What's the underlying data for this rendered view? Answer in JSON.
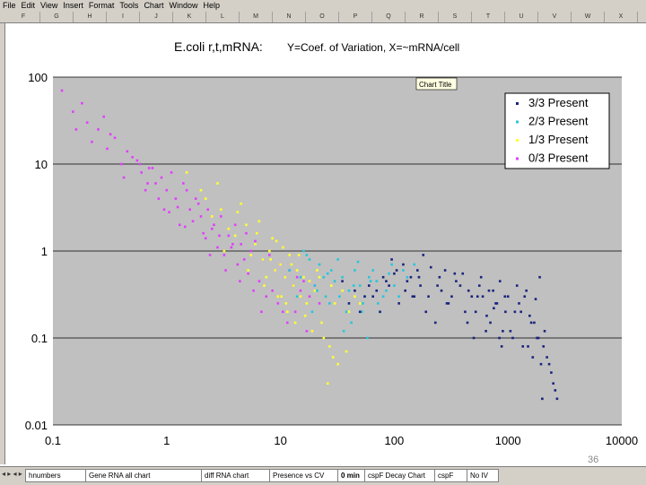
{
  "menu": [
    "File",
    "Edit",
    "View",
    "Insert",
    "Format",
    "Tools",
    "Chart",
    "Window",
    "Help"
  ],
  "columns": [
    "F",
    "G",
    "H",
    "I",
    "J",
    "K",
    "L",
    "M",
    "N",
    "O",
    "P",
    "Q",
    "R",
    "S",
    "T",
    "U",
    "V",
    "W",
    "X"
  ],
  "tabs": [
    "hnumbers",
    "Gene RNA all chart",
    "diff RNA chart",
    "Presence vs CV",
    "0 min",
    "cspF Decay Chart",
    "cspF",
    "No IV"
  ],
  "active_tab": 4,
  "page_number": "36",
  "chart_title_tooltip": "Chart Title",
  "chart_data": {
    "type": "scatter",
    "title": "E.coli r,t,mRNA:",
    "subtitle": "Y=Coef. of Variation, X=~mRNA/cell",
    "x_scale": "log",
    "y_scale": "log",
    "xlim": [
      0.1,
      10000
    ],
    "ylim": [
      0.01,
      100
    ],
    "x_ticks": [
      "0.1",
      "1",
      "10",
      "100",
      "1000",
      "10000"
    ],
    "y_ticks": [
      "0.01",
      "0.1",
      "1",
      "10",
      "100"
    ],
    "grid": "horizontal",
    "legend_position": "top-right",
    "series": [
      {
        "name": "3/3 Present",
        "color": "#1a237e",
        "x": [
          45,
          60,
          80,
          100,
          130,
          160,
          200,
          250,
          300,
          380,
          450,
          520,
          600,
          700,
          800,
          900,
          1000,
          1100,
          1300,
          1500,
          1700,
          1900,
          2100,
          2300,
          2500,
          40,
          55,
          75,
          95,
          120,
          150,
          180,
          230,
          280,
          350,
          420,
          500,
          580,
          680,
          780,
          880,
          1200,
          1400,
          1600,
          1800,
          2000,
          2200,
          2400,
          2600,
          35,
          50,
          70,
          90,
          110,
          140,
          170,
          210,
          260,
          320,
          400,
          480,
          560,
          650,
          750,
          850,
          950,
          1050,
          1250,
          1450,
          1650,
          1850,
          2050,
          2700,
          65,
          85,
          105,
          125,
          145,
          165,
          190,
          240,
          290,
          340,
          440,
          540,
          640,
          740,
          840,
          940,
          1150,
          1350,
          1550,
          1750,
          1950
        ],
        "y": [
          0.35,
          0.4,
          0.5,
          0.55,
          0.45,
          0.6,
          0.3,
          0.5,
          0.25,
          0.4,
          0.35,
          0.2,
          0.3,
          0.15,
          0.25,
          0.12,
          0.3,
          0.1,
          0.2,
          0.08,
          0.15,
          0.5,
          0.12,
          0.05,
          0.03,
          0.25,
          0.3,
          0.2,
          0.8,
          0.7,
          0.3,
          0.9,
          0.15,
          0.6,
          0.45,
          0.2,
          0.1,
          0.5,
          0.35,
          0.25,
          0.08,
          0.4,
          0.3,
          0.15,
          0.1,
          0.02,
          0.06,
          0.04,
          0.025,
          0.45,
          0.2,
          0.35,
          0.4,
          0.25,
          0.5,
          0.4,
          0.65,
          0.35,
          0.3,
          0.55,
          0.3,
          0.4,
          0.18,
          0.22,
          0.45,
          0.2,
          0.12,
          0.25,
          0.35,
          0.06,
          0.1,
          0.08,
          0.02,
          0.3,
          0.45,
          0.6,
          0.35,
          0.3,
          0.5,
          0.2,
          0.4,
          0.25,
          0.55,
          0.15,
          0.3,
          0.12,
          0.35,
          0.1,
          0.3,
          0.2,
          0.08,
          0.18,
          0.28,
          0.05
        ]
      },
      {
        "name": "2/3 Present",
        "color": "#26c6da",
        "x": [
          12,
          15,
          18,
          20,
          22,
          25,
          28,
          30,
          35,
          40,
          45,
          50,
          55,
          60,
          70,
          80,
          90,
          100,
          120,
          150,
          14,
          17,
          19,
          24,
          27,
          32,
          38,
          42,
          48,
          53,
          58,
          65,
          75,
          85,
          95,
          110,
          130,
          16,
          21,
          26,
          33,
          36,
          44,
          52,
          62,
          72
        ],
        "y": [
          0.6,
          0.5,
          0.8,
          0.4,
          0.7,
          0.3,
          0.6,
          0.45,
          0.5,
          0.35,
          0.6,
          0.4,
          0.3,
          0.5,
          0.45,
          0.3,
          0.55,
          0.4,
          0.6,
          0.7,
          0.3,
          0.9,
          0.2,
          0.5,
          0.25,
          0.8,
          0.2,
          0.15,
          0.75,
          0.25,
          0.1,
          0.6,
          0.2,
          0.35,
          0.7,
          0.3,
          0.5,
          1.0,
          0.35,
          0.55,
          0.3,
          0.12,
          0.4,
          0.2,
          0.45,
          0.25
        ]
      },
      {
        "name": "1/3 Present",
        "color": "#ffff33",
        "x": [
          3,
          4,
          5,
          6,
          7,
          8,
          9,
          10,
          11,
          12,
          13,
          14,
          15,
          16,
          18,
          20,
          22,
          25,
          28,
          30,
          35,
          40,
          45,
          50,
          2,
          2.5,
          3.5,
          4.5,
          5.5,
          6.5,
          7.5,
          8.5,
          9.5,
          10.5,
          11.5,
          12.5,
          13.5,
          17,
          19,
          21,
          24,
          27,
          32,
          38,
          1.5,
          2.2,
          2.8,
          3.2,
          4.2,
          5.2,
          6.2,
          7.2,
          8.2,
          9.2,
          10.2,
          11.2,
          14.5,
          16.5,
          23,
          26,
          29
        ],
        "y": [
          3,
          1.5,
          2,
          1.2,
          0.8,
          1,
          0.6,
          0.7,
          0.5,
          0.9,
          0.4,
          0.6,
          0.3,
          0.5,
          0.45,
          0.35,
          0.5,
          0.3,
          0.4,
          0.25,
          0.35,
          0.2,
          0.3,
          0.25,
          5,
          2.5,
          1.8,
          3.5,
          0.9,
          2.2,
          0.5,
          1.4,
          0.3,
          1.1,
          0.2,
          0.7,
          0.15,
          0.25,
          0.12,
          0.6,
          0.1,
          0.08,
          0.05,
          0.07,
          8,
          4,
          6,
          1,
          2.8,
          0.6,
          1.6,
          0.4,
          0.8,
          1.3,
          0.3,
          0.25,
          0.9,
          0.18,
          0.15,
          0.03,
          0.06
        ]
      },
      {
        "name": "0/3 Present",
        "color": "#e040fb",
        "x": [
          0.12,
          0.15,
          0.2,
          0.25,
          0.3,
          0.35,
          0.4,
          0.5,
          0.6,
          0.7,
          0.8,
          0.9,
          1,
          1.2,
          1.4,
          1.6,
          1.8,
          2,
          2.3,
          2.6,
          3,
          3.5,
          4,
          4.5,
          5,
          5.5,
          6,
          7,
          8,
          9,
          10,
          11,
          12,
          13,
          14,
          15,
          16,
          18,
          20,
          22,
          25,
          0.18,
          0.22,
          0.28,
          0.45,
          0.55,
          0.65,
          0.75,
          0.85,
          0.95,
          1.1,
          1.3,
          1.5,
          1.7,
          1.9,
          2.2,
          2.5,
          2.8,
          3.2,
          3.8,
          4.2,
          4.8,
          5.2,
          6.5,
          7.5,
          8.5,
          9.5,
          10.5,
          11.5,
          13.5,
          17,
          0.16,
          0.32,
          0.42,
          0.58,
          0.68,
          1.05,
          1.25,
          1.45,
          2.1,
          2.4,
          2.9,
          3.3,
          3.7,
          4.4,
          5.8,
          6.8
        ],
        "y": [
          70,
          40,
          30,
          25,
          15,
          20,
          10,
          12,
          8,
          9,
          6,
          7,
          5,
          4,
          6,
          3,
          4,
          2.5,
          3,
          2,
          2.5,
          1.5,
          2,
          1.2,
          1.6,
          1,
          1.3,
          0.8,
          0.9,
          0.6,
          0.7,
          0.5,
          0.6,
          0.4,
          0.5,
          0.35,
          0.45,
          0.3,
          0.4,
          0.25,
          0.3,
          50,
          18,
          35,
          14,
          11,
          5,
          9,
          4,
          3,
          8,
          2,
          5,
          2.2,
          3.5,
          1.4,
          1.8,
          1.1,
          0.9,
          1.2,
          0.7,
          0.8,
          0.55,
          0.45,
          0.3,
          0.35,
          0.25,
          0.2,
          0.15,
          0.2,
          0.12,
          25,
          22,
          7,
          10,
          6,
          2.8,
          3.2,
          1.9,
          1.6,
          0.9,
          1.5,
          0.6,
          1.1,
          0.45,
          0.35,
          0.2
        ]
      }
    ]
  }
}
